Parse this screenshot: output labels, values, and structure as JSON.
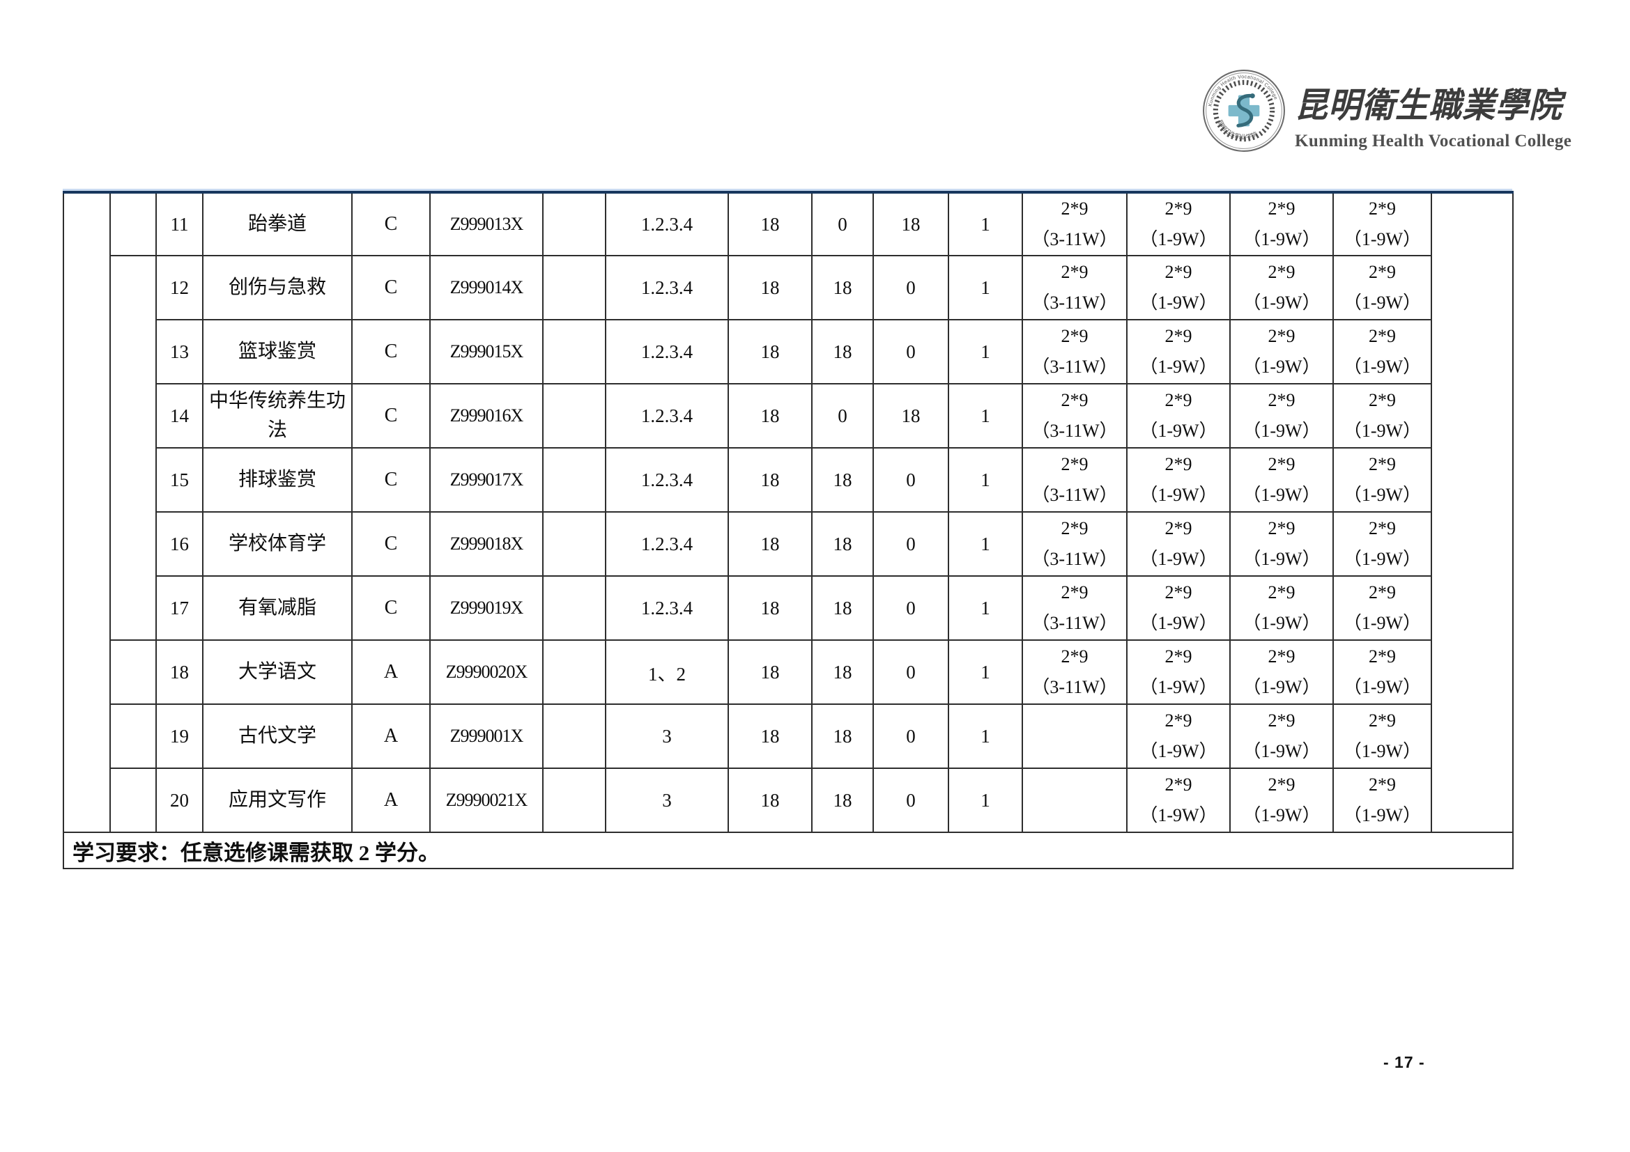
{
  "header": {
    "college_cn": "昆明衛生職業學院",
    "college_en": "Kunming Health Vocational College",
    "emblem": {
      "ring_text_top": "Kunming Health Vocational College",
      "ring_text_bottom": "昆明卫生职业学院",
      "cross_color": "#7cb9cb",
      "dragon_color": "#356b7a",
      "ring_color": "#6b6b6b"
    }
  },
  "table": {
    "rows": [
      {
        "no": "11",
        "name": "跆拳道",
        "type": "C",
        "code": "Z999013X",
        "semester": "1.2.3.4",
        "total": "18",
        "theory": "0",
        "practice": "18",
        "credits": "1",
        "weeks": [
          {
            "l1": "2*9",
            "l2": "（3-11W）"
          },
          {
            "l1": "2*9",
            "l2": "（1-9W）"
          },
          {
            "l1": "2*9",
            "l2": "（1-9W）"
          },
          {
            "l1": "2*9",
            "l2": "（1-9W）"
          }
        ]
      },
      {
        "no": "12",
        "name": "创伤与急救",
        "type": "C",
        "code": "Z999014X",
        "semester": "1.2.3.4",
        "total": "18",
        "theory": "18",
        "practice": "0",
        "credits": "1",
        "weeks": [
          {
            "l1": "2*9",
            "l2": "（3-11W）"
          },
          {
            "l1": "2*9",
            "l2": "（1-9W）"
          },
          {
            "l1": "2*9",
            "l2": "（1-9W）"
          },
          {
            "l1": "2*9",
            "l2": "（1-9W）"
          }
        ]
      },
      {
        "no": "13",
        "name": "篮球鉴赏",
        "type": "C",
        "code": "Z999015X",
        "semester": "1.2.3.4",
        "total": "18",
        "theory": "18",
        "practice": "0",
        "credits": "1",
        "weeks": [
          {
            "l1": "2*9",
            "l2": "（3-11W）"
          },
          {
            "l1": "2*9",
            "l2": "（1-9W）"
          },
          {
            "l1": "2*9",
            "l2": "（1-9W）"
          },
          {
            "l1": "2*9",
            "l2": "（1-9W）"
          }
        ]
      },
      {
        "no": "14",
        "name": "中华传统养生功法",
        "type": "C",
        "code": "Z999016X",
        "semester": "1.2.3.4",
        "total": "18",
        "theory": "0",
        "practice": "18",
        "credits": "1",
        "weeks": [
          {
            "l1": "2*9",
            "l2": "（3-11W）"
          },
          {
            "l1": "2*9",
            "l2": "（1-9W）"
          },
          {
            "l1": "2*9",
            "l2": "（1-9W）"
          },
          {
            "l1": "2*9",
            "l2": "（1-9W）"
          }
        ]
      },
      {
        "no": "15",
        "name": "排球鉴赏",
        "type": "C",
        "code": "Z999017X",
        "semester": "1.2.3.4",
        "total": "18",
        "theory": "18",
        "practice": "0",
        "credits": "1",
        "weeks": [
          {
            "l1": "2*9",
            "l2": "（3-11W）"
          },
          {
            "l1": "2*9",
            "l2": "（1-9W）"
          },
          {
            "l1": "2*9",
            "l2": "（1-9W）"
          },
          {
            "l1": "2*9",
            "l2": "（1-9W）"
          }
        ]
      },
      {
        "no": "16",
        "name": "学校体育学",
        "type": "C",
        "code": "Z999018X",
        "semester": "1.2.3.4",
        "total": "18",
        "theory": "18",
        "practice": "0",
        "credits": "1",
        "weeks": [
          {
            "l1": "2*9",
            "l2": "（3-11W）"
          },
          {
            "l1": "2*9",
            "l2": "（1-9W）"
          },
          {
            "l1": "2*9",
            "l2": "（1-9W）"
          },
          {
            "l1": "2*9",
            "l2": "（1-9W）"
          }
        ]
      },
      {
        "no": "17",
        "name": "有氧减脂",
        "type": "C",
        "code": "Z999019X",
        "semester": "1.2.3.4",
        "total": "18",
        "theory": "18",
        "practice": "0",
        "credits": "1",
        "weeks": [
          {
            "l1": "2*9",
            "l2": "（3-11W）"
          },
          {
            "l1": "2*9",
            "l2": "（1-9W）"
          },
          {
            "l1": "2*9",
            "l2": "（1-9W）"
          },
          {
            "l1": "2*9",
            "l2": "（1-9W）"
          }
        ]
      },
      {
        "no": "18",
        "name": "大学语文",
        "type": "A",
        "code": "Z9990020X",
        "semester": "1、2",
        "total": "18",
        "theory": "18",
        "practice": "0",
        "credits": "1",
        "weeks": [
          {
            "l1": "2*9",
            "l2": "（3-11W）"
          },
          {
            "l1": "2*9",
            "l2": "（1-9W）"
          },
          {
            "l1": "2*9",
            "l2": "（1-9W）"
          },
          {
            "l1": "2*9",
            "l2": "（1-9W）"
          }
        ]
      },
      {
        "no": "19",
        "name": "古代文学",
        "type": "A",
        "code": "Z999001X",
        "semester": "3",
        "total": "18",
        "theory": "18",
        "practice": "0",
        "credits": "1",
        "weeks": [
          {
            "l1": "",
            "l2": ""
          },
          {
            "l1": "2*9",
            "l2": "（1-9W）"
          },
          {
            "l1": "2*9",
            "l2": "（1-9W）"
          },
          {
            "l1": "2*9",
            "l2": "（1-9W）"
          }
        ]
      },
      {
        "no": "20",
        "name": "应用文写作",
        "type": "A",
        "code": "Z9990021X",
        "semester": "3",
        "total": "18",
        "theory": "18",
        "practice": "0",
        "credits": "1",
        "weeks": [
          {
            "l1": "",
            "l2": ""
          },
          {
            "l1": "2*9",
            "l2": "（1-9W）"
          },
          {
            "l1": "2*9",
            "l2": "（1-9W）"
          },
          {
            "l1": "2*9",
            "l2": "（1-9W）"
          }
        ]
      }
    ],
    "note": "学习要求：任意选修课需获取 2 学分。"
  },
  "footer": {
    "page_number": "- 17 -"
  }
}
